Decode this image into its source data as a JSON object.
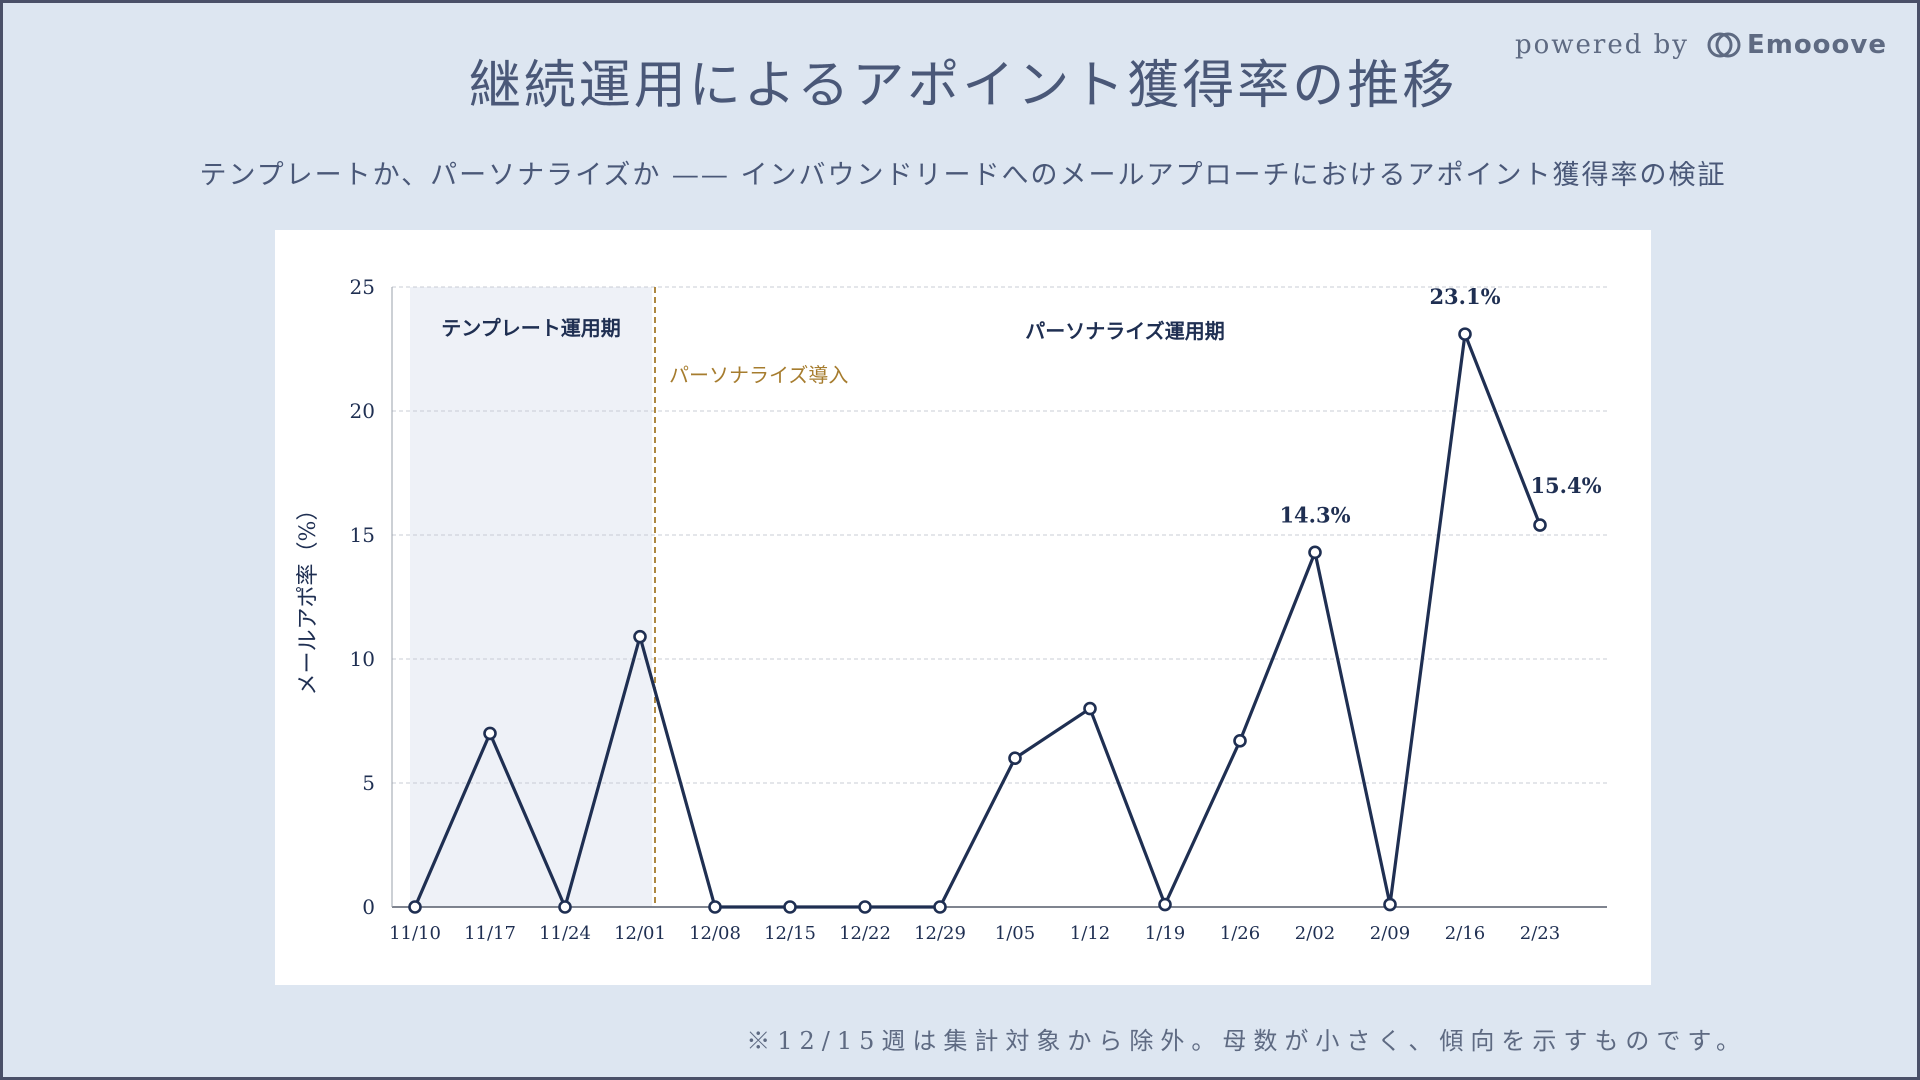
{
  "title": "継続運用によるアポイント獲得率の推移",
  "subtitle": "テンプレートか、パーソナライズか —— インバウンドリードへのメールアプローチにおけるアポイント獲得率の検証",
  "powered_by": {
    "text": "powered by",
    "brand": "Emooove",
    "brand_icon": "emooove-logo-icon"
  },
  "footnote": "※12/15週は集計対象から除外。母数が小さく、傾向を示すものです。",
  "colors": {
    "background": "#dde6f1",
    "line": "#1f2f52",
    "template_region": "#eef1f7",
    "introduction_line": "#a67c2e",
    "grid": "#c8ccd4"
  },
  "chart_data": {
    "type": "line",
    "ylabel": "メールアポ率（%）",
    "xlabel": "",
    "ylim": [
      0,
      25
    ],
    "yticks": [
      0,
      5,
      10,
      15,
      20,
      25
    ],
    "grid": true,
    "categories": [
      "11/10",
      "11/17",
      "11/24",
      "12/01",
      "12/08",
      "12/15",
      "12/22",
      "12/29",
      "1/05",
      "1/12",
      "1/19",
      "1/26",
      "2/02",
      "2/09",
      "2/16",
      "2/23"
    ],
    "series": [
      {
        "values": [
          0,
          7.0,
          0,
          10.9,
          0,
          0,
          0,
          0,
          6.0,
          8.0,
          0.1,
          6.7,
          14.3,
          0.1,
          23.1,
          15.4
        ]
      }
    ],
    "data_labels": [
      {
        "category": "2/02",
        "text": "14.3%"
      },
      {
        "category": "2/16",
        "text": "23.1%"
      },
      {
        "category": "2/23",
        "text": "15.4%"
      }
    ],
    "regions": [
      {
        "label": "テンプレート運用期",
        "from": "11/10",
        "to": "11/24",
        "shaded": true
      },
      {
        "label": "パーソナライズ運用期",
        "from": "12/01",
        "to": "2/23",
        "shaded": false
      }
    ],
    "annotations": [
      {
        "label": "パーソナライズ導入",
        "at_between": [
          "11/24",
          "12/01"
        ]
      }
    ]
  }
}
